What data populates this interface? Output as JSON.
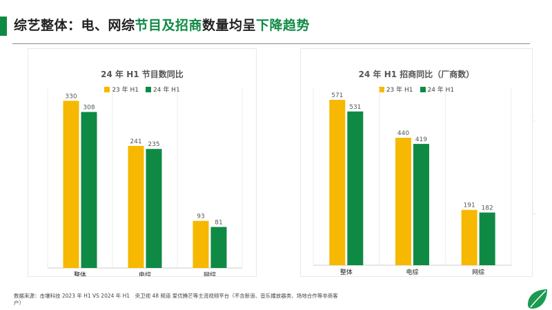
{
  "title": {
    "part1": "综艺整体：电、网综",
    "part2": "节目及招商",
    "part3": "数量均呈",
    "part4": "下降趋势"
  },
  "colors": {
    "green": "#0f8a45",
    "yellow": "#f6b800",
    "text_dark": "#222222"
  },
  "watermark": "击壤科技",
  "footnote": "数据来源：击壤科技 2023 年 H1 VS 2024 年 H1　央卫视 48 频道  爱优腾芒等主流视频平台（不含新浪、音乐播放器类、场地合作等非商客户）",
  "chart_data": [
    {
      "type": "bar",
      "title": "24 年 H1 节目数同比",
      "categories": [
        "整体",
        "电综",
        "网综"
      ],
      "series": [
        {
          "name": "23 年 H1",
          "values": [
            330,
            241,
            93
          ],
          "color": "#f6b800"
        },
        {
          "name": "24 年 H1",
          "values": [
            308,
            235,
            81
          ],
          "color": "#0f8a45"
        }
      ],
      "ylim": [
        0,
        340
      ],
      "grid": "vertical",
      "legend": "top-center"
    },
    {
      "type": "bar",
      "title": "24 年 H1 招商同比（厂商数）",
      "categories": [
        "整体",
        "电综",
        "网综"
      ],
      "series": [
        {
          "name": "23 年 H1",
          "values": [
            571,
            440,
            191
          ],
          "color": "#f6b800"
        },
        {
          "name": "24 年 H1",
          "values": [
            531,
            419,
            182
          ],
          "color": "#0f8a45"
        }
      ],
      "ylim": [
        0,
        590
      ],
      "grid": "vertical",
      "legend": "top-center"
    }
  ]
}
